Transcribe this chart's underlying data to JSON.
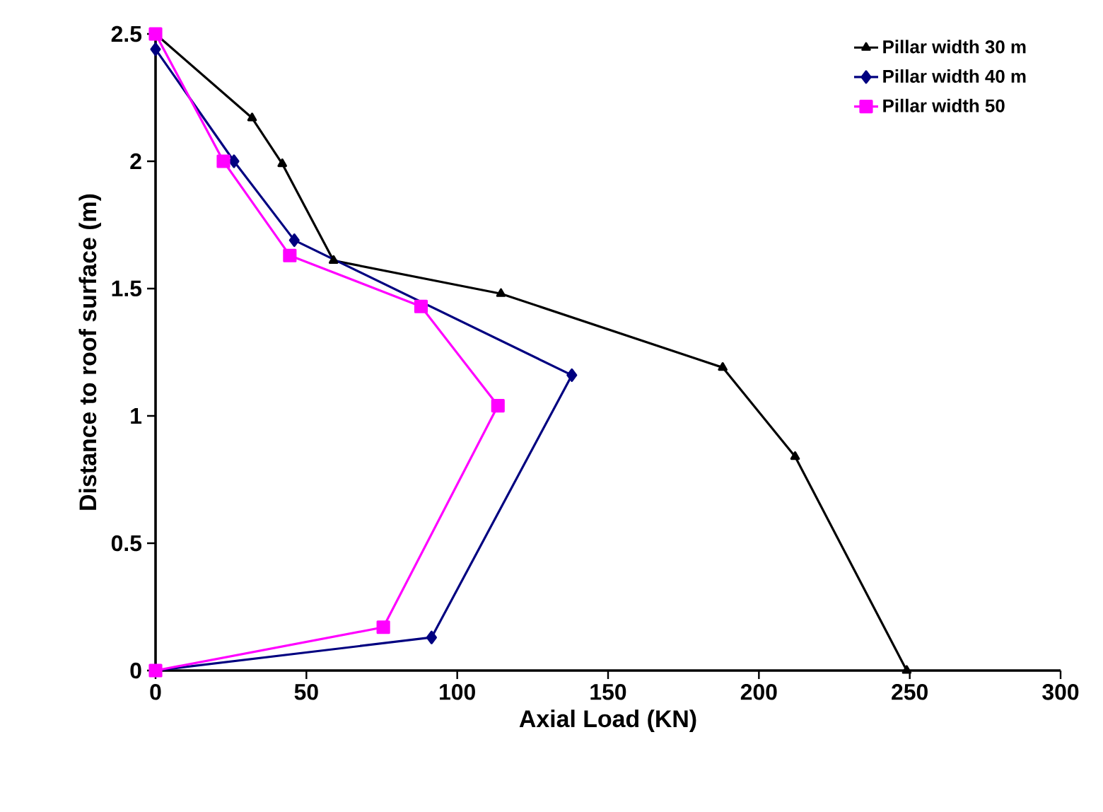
{
  "chart_data": {
    "type": "line",
    "xlabel": "Axial Load (KN)",
    "ylabel": "Distance to roof surface (m)",
    "xlim": [
      0,
      300
    ],
    "ylim": [
      0,
      2.5
    ],
    "xticks": [
      0,
      50,
      100,
      150,
      200,
      250,
      300
    ],
    "yticks": [
      0,
      0.5,
      1,
      1.5,
      2,
      2.5
    ],
    "legend": "top right",
    "grid": false,
    "series": [
      {
        "name": "Pillar width 30 m",
        "color": "#000000",
        "marker": "triangle",
        "x": [
          0,
          32,
          42,
          59,
          114.5,
          188,
          212,
          249
        ],
        "values": [
          2.5,
          2.17,
          1.99,
          1.61,
          1.48,
          1.19,
          0.84,
          0
        ]
      },
      {
        "name": "Pillar width 40 m",
        "color": "#000080",
        "marker": "diamond",
        "x": [
          0,
          26,
          46,
          138,
          91.5,
          0
        ],
        "values": [
          2.44,
          2.0,
          1.69,
          1.16,
          0.13,
          0
        ]
      },
      {
        "name": "Pillar width 50",
        "color": "#ff00ff",
        "marker": "square",
        "x": [
          0,
          22.5,
          44.5,
          88,
          113.5,
          75.5,
          0
        ],
        "values": [
          2.5,
          2.0,
          1.63,
          1.43,
          1.04,
          0.17,
          0
        ]
      }
    ]
  }
}
